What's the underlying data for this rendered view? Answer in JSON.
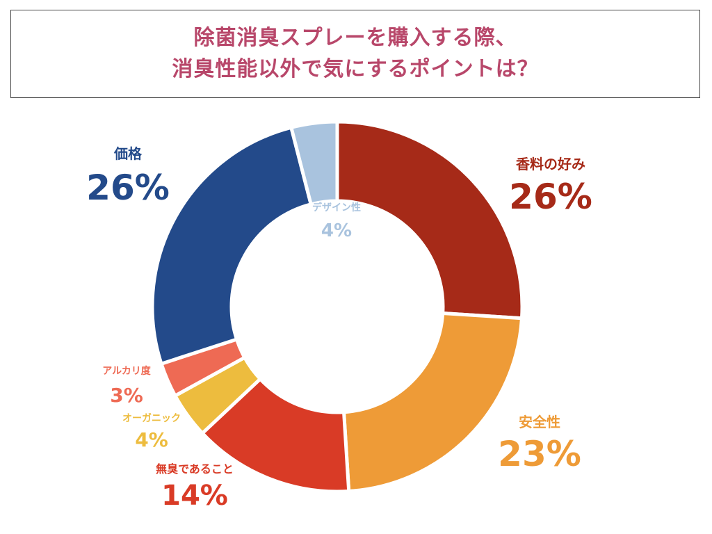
{
  "title": {
    "line1": "除菌消臭スプレーを購入する際、",
    "line2": "消臭性能以外で気にするポイントは？",
    "color": "#B8476A"
  },
  "chart_data": {
    "type": "pie",
    "donut": true,
    "start_angle_deg": 0,
    "direction": "clockwise",
    "slices": [
      {
        "label": "香料の好み",
        "value": 26,
        "display": "26%",
        "color": "#A62A18"
      },
      {
        "label": "安全性",
        "value": 23,
        "display": "23%",
        "color": "#EE9B37"
      },
      {
        "label": "無臭であること",
        "value": 14,
        "display": "14%",
        "color": "#D93B26"
      },
      {
        "label": "オーガニック",
        "value": 4,
        "display": "4%",
        "color": "#EDBC3E"
      },
      {
        "label": "アルカリ度",
        "value": 3,
        "display": "3%",
        "color": "#EE6A54"
      },
      {
        "label": "価格",
        "value": 26,
        "display": "26%",
        "color": "#234A8A"
      },
      {
        "label": "デザイン性",
        "value": 4,
        "display": "4%",
        "color": "#A9C3DE"
      }
    ]
  }
}
